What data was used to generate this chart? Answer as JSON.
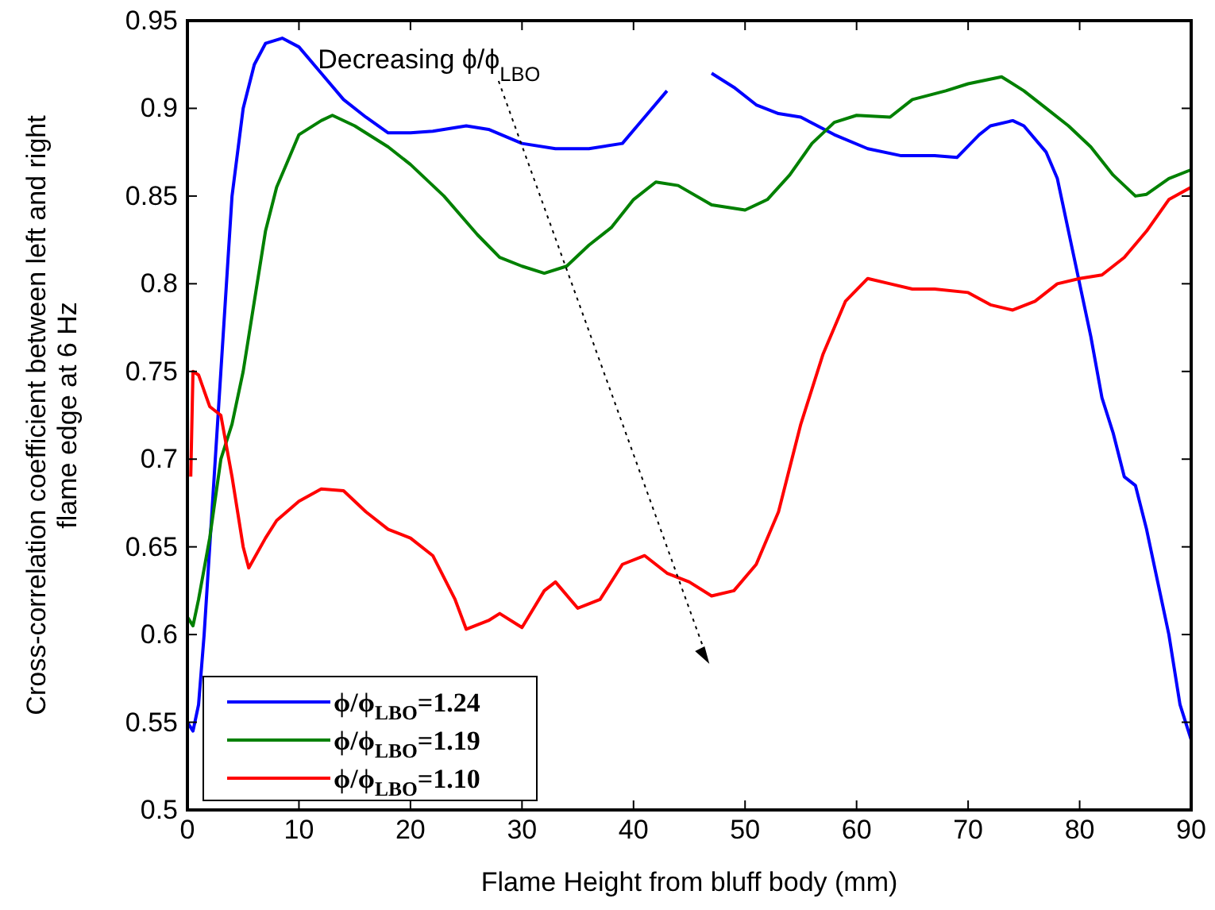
{
  "chart_data": {
    "type": "line",
    "xlabel": "Flame Height from bluff body (mm)",
    "ylabel": "Cross-correlation coefficient between left and right flame edge at 6 Hz",
    "xlim": [
      0,
      90
    ],
    "xticks": [
      0,
      10,
      20,
      30,
      40,
      50,
      60,
      70,
      80,
      90
    ],
    "ylim": [
      0.5,
      0.95
    ],
    "yticks": [
      0.5,
      0.55,
      0.6,
      0.65,
      0.7,
      0.75,
      0.8,
      0.85,
      0.9,
      0.95
    ],
    "grid": false,
    "legend": "bottom left",
    "marker": "none",
    "line_style": "solid",
    "annotations": [
      "Decreasing ϕ/ϕ$_{LBO}$"
    ],
    "series": [
      {
        "name": "ϕ/ϕ$_{LBO}$=1.24",
        "color": "#0000ff",
        "x": [
          0,
          0.5,
          1,
          1.5,
          2,
          2.5,
          3,
          3.5,
          4,
          5,
          6,
          7,
          8.5,
          10,
          12,
          14,
          16,
          18,
          20,
          22,
          25,
          27,
          30,
          33,
          36,
          39,
          41,
          43,
          45,
          47,
          49,
          51,
          53,
          55,
          58,
          61,
          64,
          67,
          69,
          71,
          72,
          74,
          75,
          77,
          78,
          79,
          80,
          81,
          82,
          83,
          84,
          85,
          86,
          87,
          88,
          89,
          90
        ],
        "values": [
          0.55,
          0.545,
          0.56,
          0.6,
          0.65,
          0.7,
          0.75,
          0.8,
          0.85,
          0.9,
          0.925,
          0.937,
          0.94,
          0.935,
          0.92,
          0.905,
          0.895,
          0.886,
          0.886,
          0.887,
          0.89,
          0.888,
          0.88,
          0.877,
          0.877,
          0.88,
          0.895,
          0.91,
          null,
          0.92,
          0.912,
          0.902,
          0.897,
          0.895,
          0.885,
          0.877,
          0.873,
          0.873,
          0.872,
          0.885,
          0.89,
          0.893,
          0.89,
          0.875,
          0.86,
          0.83,
          0.8,
          0.77,
          0.735,
          0.715,
          0.69,
          0.685,
          0.66,
          0.63,
          0.6,
          0.56,
          0.54
        ]
      },
      {
        "name": "ϕ/ϕ$_{LBO}$=1.19",
        "color": "#008000",
        "x": [
          0,
          0.5,
          1,
          2,
          3,
          4,
          5,
          6,
          7,
          8,
          9,
          10,
          12,
          13,
          15,
          18,
          20,
          23,
          26,
          28,
          30,
          32,
          34,
          36,
          38,
          40,
          42,
          44,
          47,
          50,
          52,
          54,
          56,
          58,
          60,
          63,
          65,
          68,
          70,
          73,
          75,
          77,
          79,
          81,
          83,
          85,
          86,
          88,
          90
        ],
        "values": [
          0.61,
          0.605,
          0.62,
          0.655,
          0.7,
          0.72,
          0.75,
          0.79,
          0.83,
          0.855,
          0.87,
          0.885,
          0.893,
          0.896,
          0.89,
          0.878,
          0.868,
          0.85,
          0.828,
          0.815,
          0.81,
          0.806,
          0.81,
          0.822,
          0.832,
          0.848,
          0.858,
          0.856,
          0.845,
          0.842,
          0.848,
          0.862,
          0.88,
          0.892,
          0.896,
          0.895,
          0.905,
          0.91,
          0.914,
          0.918,
          0.91,
          0.9,
          0.89,
          0.878,
          0.862,
          0.85,
          0.851,
          0.86,
          0.865
        ]
      },
      {
        "name": "ϕ/ϕ$_{LBO}$=1.10",
        "color": "#ff0000",
        "x": [
          0.3,
          0.5,
          1,
          2,
          3,
          4,
          5,
          5.5,
          7,
          8,
          10,
          12,
          14,
          16,
          18,
          20,
          22,
          24,
          25,
          27,
          28,
          30,
          32,
          33,
          35,
          37,
          39,
          41,
          43,
          45,
          47,
          49,
          51,
          53,
          55,
          57,
          59,
          61,
          63,
          65,
          67,
          70,
          72,
          74,
          76,
          78,
          80,
          82,
          84,
          86,
          88,
          90
        ],
        "values": [
          0.69,
          0.75,
          0.748,
          0.73,
          0.725,
          0.69,
          0.65,
          0.638,
          0.655,
          0.665,
          0.676,
          0.683,
          0.682,
          0.67,
          0.66,
          0.655,
          0.645,
          0.62,
          0.603,
          0.608,
          0.612,
          0.604,
          0.625,
          0.63,
          0.615,
          0.62,
          0.64,
          0.645,
          0.635,
          0.63,
          0.622,
          0.625,
          0.64,
          0.67,
          0.72,
          0.76,
          0.79,
          0.803,
          0.8,
          0.797,
          0.797,
          0.795,
          0.788,
          0.785,
          0.79,
          0.8,
          0.803,
          0.805,
          0.815,
          0.83,
          0.848,
          0.855
        ]
      }
    ]
  }
}
